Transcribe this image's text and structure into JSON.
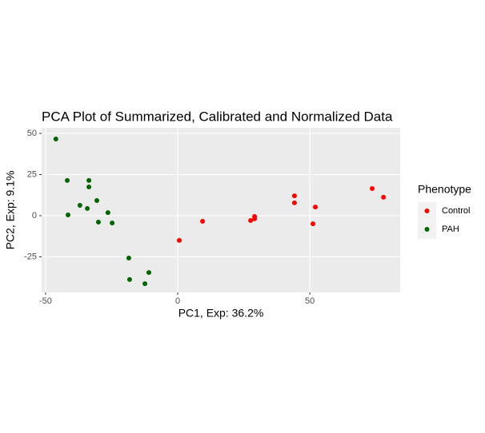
{
  "chart_data": {
    "type": "scatter",
    "title": "PCA Plot of Summarized, Calibrated and Normalized Data",
    "xlabel": "PC1, Exp: 36.2%",
    "ylabel": "PC2, Exp: 9.1%",
    "legend_title": "Phenotype",
    "legend_position": "right",
    "grid": true,
    "xlim": [
      -51.5,
      84.2
    ],
    "ylim": [
      -46.6,
      53.4
    ],
    "xticks": [
      -50,
      0,
      50
    ],
    "yticks": [
      50,
      25,
      0,
      -25
    ],
    "series": [
      {
        "name": "Control",
        "color": "#ff0000",
        "x": [
          0.6,
          9.4,
          27.6,
          29.1,
          29.1,
          44.2,
          44.2,
          52.1,
          51.2,
          73.6,
          77.9
        ],
        "y": [
          -15.0,
          -3.4,
          -2.9,
          -0.5,
          -1.9,
          12.1,
          7.8,
          5.3,
          -4.9,
          16.5,
          11.2
        ]
      },
      {
        "name": "PAH",
        "color": "#006400",
        "x": [
          -46.1,
          -41.8,
          -33.6,
          -33.6,
          -37.0,
          -34.2,
          -30.6,
          -26.4,
          -41.5,
          -30.0,
          -24.8,
          -18.5,
          -18.2,
          -10.9,
          -12.4
        ],
        "y": [
          46.6,
          21.4,
          21.4,
          17.5,
          6.3,
          4.4,
          9.2,
          1.9,
          0.5,
          -3.9,
          -4.4,
          -25.7,
          -38.8,
          -34.5,
          -41.3
        ]
      }
    ]
  }
}
